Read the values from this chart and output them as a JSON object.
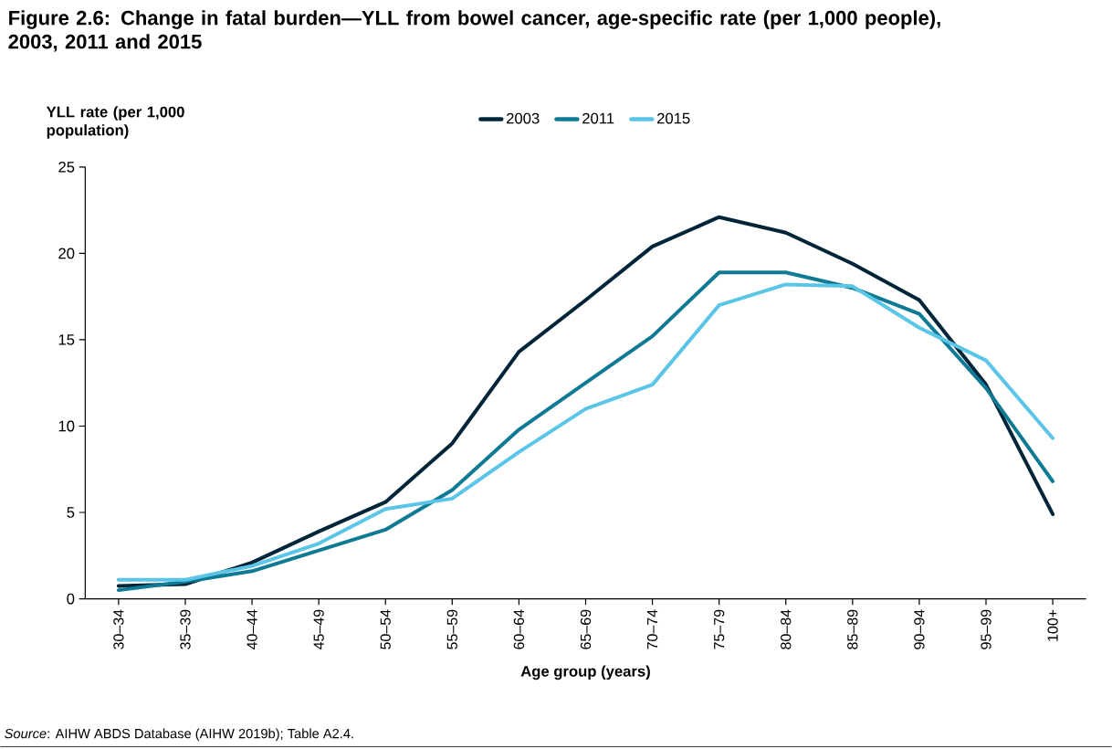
{
  "chart_data": {
    "type": "line",
    "title": "Figure 2.6: Change in fatal burden—YLL from bowel cancer, age-specific rate (per 1,000 people), 2003, 2011 and 2015",
    "ylabel": "YLL rate (per 1,000 population)",
    "xlabel": "**Age group (years**)",
    "categories": [
      "30–34",
      "35–39",
      "40–44",
      "45–49",
      "50–54",
      "55–59",
      "60–64",
      "65–69",
      "70–74",
      "75–79",
      "80–84",
      "85–89",
      "90–94",
      "95–99",
      "100+"
    ],
    "series": [
      {
        "name": "2003",
        "color": "#002538",
        "values": [
          0.75,
          0.85,
          2.1,
          3.9,
          5.6,
          9.0,
          14.3,
          17.3,
          20.4,
          22.1,
          21.2,
          19.4,
          17.3,
          12.4,
          4.9
        ]
      },
      {
        "name": "2011",
        "color": "#0f7a94",
        "values": [
          0.5,
          1.0,
          1.6,
          2.8,
          4.0,
          6.3,
          9.8,
          12.5,
          15.2,
          18.9,
          18.9,
          18.0,
          16.5,
          12.2,
          6.8
        ]
      },
      {
        "name": "2015",
        "color": "#5bc5e8",
        "values": [
          1.1,
          1.1,
          1.9,
          3.2,
          5.2,
          5.8,
          8.5,
          11.0,
          12.4,
          17.0,
          18.2,
          18.1,
          15.7,
          13.8,
          9.3
        ]
      }
    ],
    "ylim": [
      0,
      25
    ],
    "yticks": [
      0,
      5,
      10,
      15,
      20,
      25
    ],
    "legend": "top",
    "annotations": [
      "*Source*: AIHW ABDS Database (AIHW 2019b); Table A2.4."
    ]
  }
}
